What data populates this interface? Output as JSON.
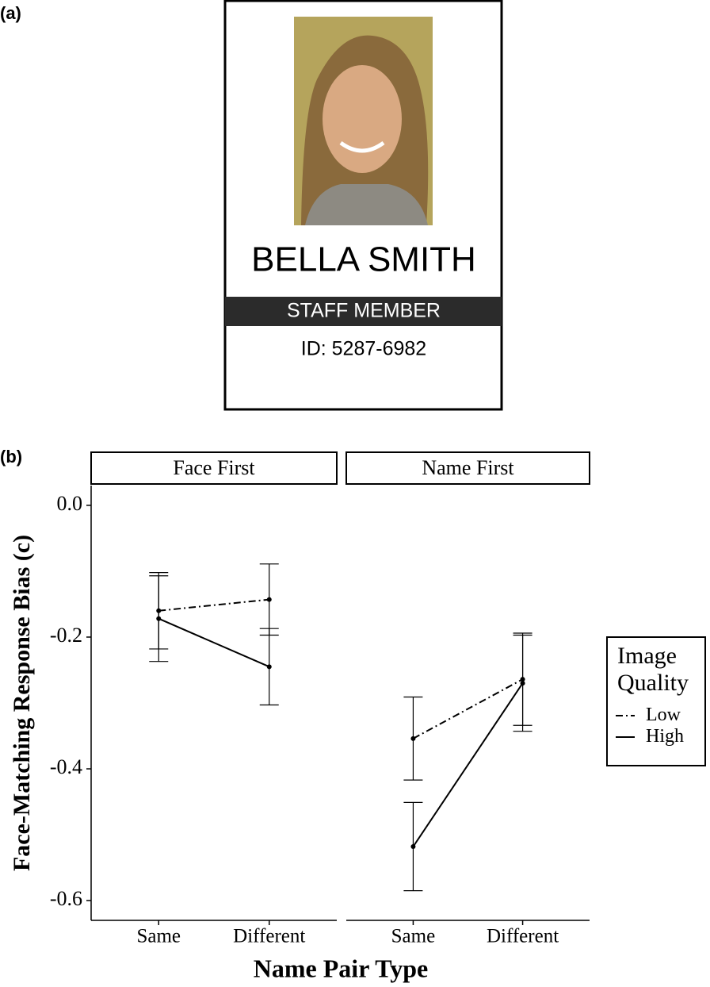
{
  "panel_labels": [
    "(a)",
    "(b)"
  ],
  "id_card": {
    "name": "BELLA SMITH",
    "role": "STAFF MEMBER",
    "id": "ID: 5287-6982"
  },
  "chart_data": {
    "type": "line",
    "ylabel": "Face-Matching Response Bias (c)",
    "xlabel": "Name Pair Type",
    "legend_title": "Image Quality",
    "legend": "right",
    "categories": [
      "Same",
      "Different"
    ],
    "ylim": [
      -0.63,
      0.03
    ],
    "yticks": [
      {
        "value": 0,
        "label": "0.0"
      },
      {
        "value": -0.2,
        "label": "-0.2"
      },
      {
        "value": -0.4,
        "label": "-0.4"
      },
      {
        "value": -0.6,
        "label": "-0.6"
      }
    ],
    "facets": [
      {
        "title": "Face First",
        "series": [
          {
            "name": "Low",
            "color": "#000000",
            "dash": "dashdot",
            "values": [
              -0.16,
              -0.143
            ],
            "errors": [
              0.058,
              0.054
            ]
          },
          {
            "name": "High",
            "color": "#000000",
            "dash": "solid",
            "values": [
              -0.172,
              -0.245
            ],
            "errors": [
              0.065,
              0.058
            ]
          }
        ]
      },
      {
        "title": "Name First",
        "series": [
          {
            "name": "Low",
            "color": "#000000",
            "dash": "dashdot",
            "values": [
              -0.354,
              -0.264
            ],
            "errors": [
              0.063,
              0.07
            ]
          },
          {
            "name": "High",
            "color": "#000000",
            "dash": "solid",
            "values": [
              -0.518,
              -0.27
            ],
            "errors": [
              0.067,
              0.073
            ]
          }
        ]
      }
    ]
  }
}
